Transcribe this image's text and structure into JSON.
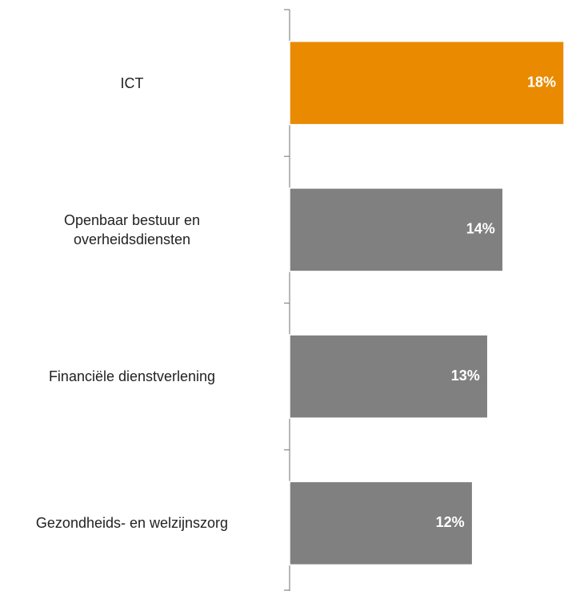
{
  "chart_data": {
    "type": "bar",
    "orientation": "horizontal",
    "categories": [
      "ICT",
      "Openbaar bestuur en\noverheidsdiensten",
      "Financiële dienstverlening",
      "Gezondheids- en welzijnszorg"
    ],
    "values": [
      18,
      14,
      13,
      12
    ],
    "value_labels": [
      "18%",
      "14%",
      "13%",
      "12%"
    ],
    "colors": [
      "#ea8a00",
      "#808080",
      "#808080",
      "#808080"
    ]
  }
}
